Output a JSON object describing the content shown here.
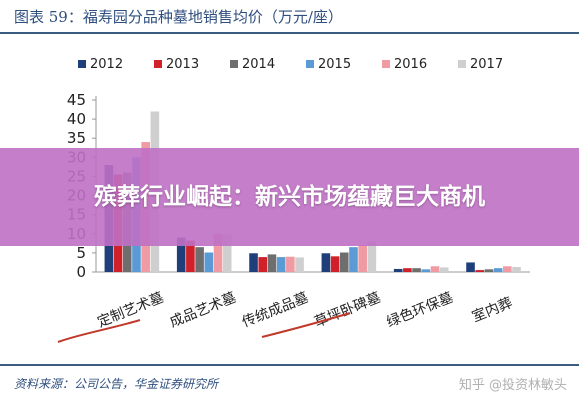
{
  "figure": {
    "title": "图表 59：福寿园分品种墓地销售均价（万元/座）",
    "source": "资料来源：公司公告，华金证券研究所",
    "watermark": "知乎 @投资林敏头"
  },
  "banner": {
    "text": "殡葬行业崛起：新兴市场蕴藏巨大商机"
  },
  "chart_data": {
    "type": "bar",
    "categories": [
      "定制艺术墓",
      "成品艺术墓",
      "传统成品墓",
      "草坪卧碑墓",
      "绿色环保墓",
      "室内葬"
    ],
    "series": [
      {
        "name": "2012",
        "color": "#1f3f7a",
        "values": [
          28.0,
          9.0,
          4.9,
          4.9,
          0.8,
          2.5
        ]
      },
      {
        "name": "2013",
        "color": "#d0202a",
        "values": [
          25.5,
          8.2,
          3.9,
          4.1,
          1.0,
          0.5
        ]
      },
      {
        "name": "2014",
        "color": "#6e6e6e",
        "values": [
          26.0,
          6.5,
          4.6,
          5.1,
          1.0,
          0.7
        ]
      },
      {
        "name": "2015",
        "color": "#5b9bd5",
        "values": [
          30.0,
          5.1,
          3.9,
          6.5,
          0.7,
          1.0
        ]
      },
      {
        "name": "2016",
        "color": "#f09aa3",
        "values": [
          34.0,
          10.0,
          4.0,
          7.0,
          1.5,
          1.5
        ]
      },
      {
        "name": "2017",
        "color": "#cfcfcf",
        "values": [
          42.0,
          9.8,
          3.8,
          8.0,
          1.2,
          1.3
        ]
      }
    ],
    "ylim": [
      0,
      45
    ],
    "yticks": [
      0,
      5,
      10,
      15,
      20,
      25,
      30,
      35,
      40,
      45
    ],
    "legend_position": "top",
    "grid": false
  }
}
